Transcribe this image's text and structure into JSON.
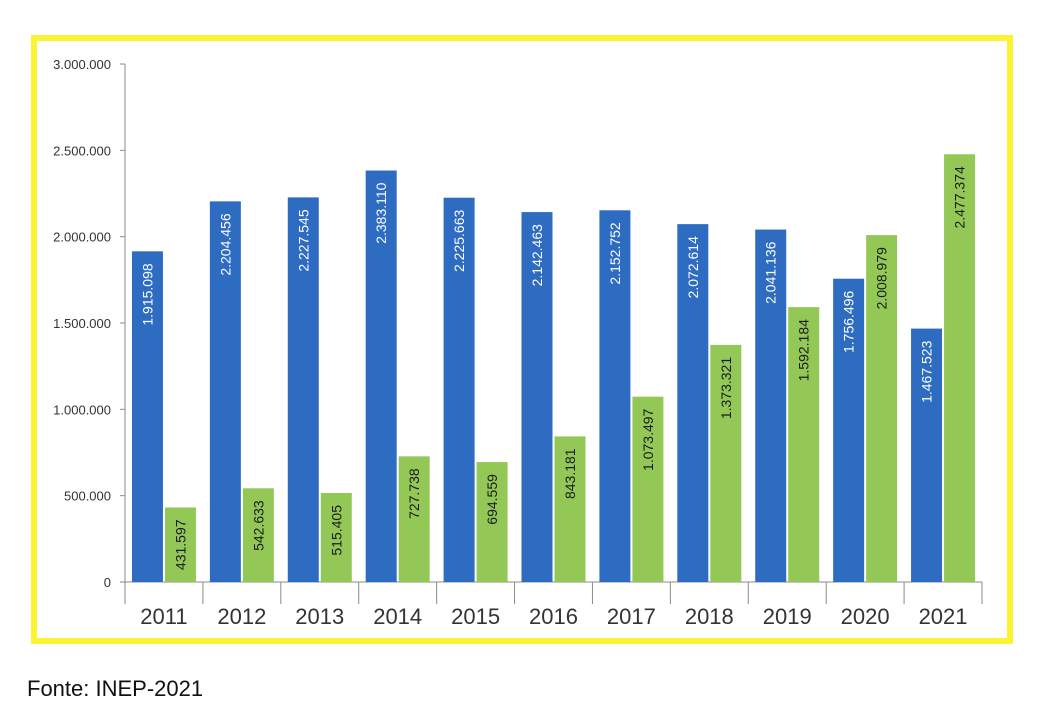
{
  "chart_data": {
    "type": "bar",
    "title": "",
    "xlabel": "",
    "ylabel": "",
    "categories": [
      "2011",
      "2012",
      "2013",
      "2014",
      "2015",
      "2016",
      "2017",
      "2018",
      "2019",
      "2020",
      "2021"
    ],
    "series": [
      {
        "name": "",
        "color": "#2e6cc2",
        "values": [
          1915098,
          2204456,
          2227545,
          2383110,
          2225663,
          2142463,
          2152752,
          2072614,
          2041136,
          1756496,
          1467523
        ],
        "labels": [
          "1.915.098",
          "2.204.456",
          "2.227.545",
          "2.383.110",
          "2.225.663",
          "2.142.463",
          "2.152.752",
          "2.072.614",
          "2.041.136",
          "1.756.496",
          "1.467.523"
        ]
      },
      {
        "name": "",
        "color": "#93c856",
        "values": [
          431597,
          542633,
          515405,
          727738,
          694559,
          843181,
          1073497,
          1373321,
          1592184,
          2008979,
          2477374
        ],
        "labels": [
          "431.597",
          "542.633",
          "515.405",
          "727.738",
          "694.559",
          "843.181",
          "1.073.497",
          "1.373.321",
          "1.592.184",
          "2.008.979",
          "2.477.374"
        ]
      }
    ],
    "ylim": [
      0,
      3000000
    ],
    "yticks": [
      0,
      500000,
      1000000,
      1500000,
      2000000,
      2500000,
      3000000
    ],
    "ytick_labels": [
      "0",
      "500.000",
      "1.000.000",
      "1.500.000",
      "2.000.000",
      "2.500.000",
      "3.000.000"
    ],
    "grid": false,
    "legend": "none"
  },
  "source": "Fonte: INEP-2021"
}
